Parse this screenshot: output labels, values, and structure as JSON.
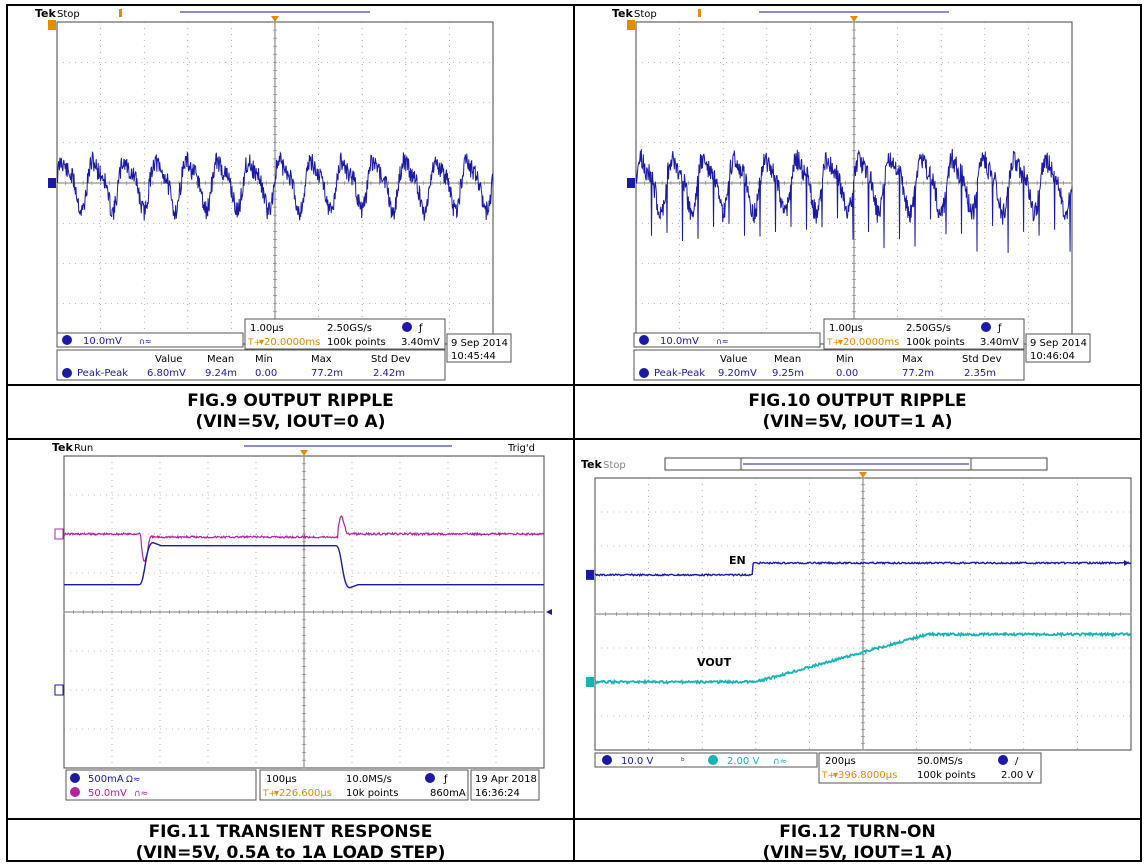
{
  "captions": [
    {
      "line1": "FIG.9 OUTPUT RIPPLE",
      "line2": "(VIN=5V, IOUT=0 A)"
    },
    {
      "line1": "FIG.10 OUTPUT RIPPLE",
      "line2": "(VIN=5V, IOUT=1 A)"
    },
    {
      "line1": "FIG.11 TRANSIENT RESPONSE",
      "line2": "(VIN=5V, 0.5A to 1A LOAD STEP)"
    },
    {
      "line1": "FIG.12 TURN-ON",
      "line2": "(VIN=5V, IOUT=1 A)"
    }
  ],
  "colors": {
    "ch1": "#1a1aa6",
    "ch2": "#16b3b3",
    "ch3": "#b3249e",
    "trigger": "#e68a00",
    "grid": "#7a7a7a"
  },
  "chart_data": [
    {
      "type": "line",
      "status": "Stop",
      "ch1_scale": "10.0mV",
      "ch1_suffix": "∩≈",
      "timebase": "1.00µs",
      "sample_rate": "2.50GS/s",
      "trigger_pos": "▾20.0000ms",
      "points": "100k points",
      "trigger_level": "3.40mV",
      "date": "9 Sep  2014",
      "time": "10:45:44",
      "measure_headers": [
        "Value",
        "Mean",
        "Min",
        "Max",
        "Std Dev"
      ],
      "measure_label": "Peak-Peak",
      "measure_values": [
        "6.80mV",
        "9.24m",
        "0.00",
        "77.2m",
        "2.42m"
      ],
      "series": [
        {
          "channel": "1",
          "level_div": 0.55,
          "ripple_periods": 14,
          "amplitude_div": 0.18,
          "spikes": false
        }
      ]
    },
    {
      "type": "line",
      "status": "Stop",
      "ch1_scale": "10.0mV",
      "ch1_suffix": "∩≈",
      "timebase": "1.00µs",
      "sample_rate": "2.50GS/s",
      "trigger_pos": "▾20.0000ms",
      "points": "100k points",
      "trigger_level": "3.40mV",
      "date": "9 Sep  2014",
      "time": "10:46:04",
      "measure_headers": [
        "Value",
        "Mean",
        "Min",
        "Max",
        "Std Dev"
      ],
      "measure_label": "Peak-Peak",
      "measure_values": [
        "9.20mV",
        "9.25m",
        "0.00",
        "77.2m",
        "2.35m"
      ],
      "series": [
        {
          "channel": "1",
          "level_div": 0.55,
          "ripple_periods": 14,
          "amplitude_div": 0.2,
          "spikes": true
        }
      ]
    },
    {
      "type": "line",
      "status": "Run",
      "trig_status": "Trig'd",
      "ch1_scale": "500mA",
      "ch1_suffix": "Ω≈",
      "ch3_scale": "50.0mV",
      "ch3_suffix": "∩≈",
      "timebase": "100µs",
      "sample_rate": "10.0MS/s",
      "trigger_pos": "▾226.600µs",
      "points": "10k points",
      "trigger_level": "860mA",
      "date": "19 Apr  2018",
      "time": "16:36:24",
      "series": [
        {
          "channel": "3",
          "name": "output voltage",
          "baseline_div": 2.0,
          "step_up_div": 1.6,
          "step_down_div": 5.7,
          "dip_div": 1.1,
          "peak_div": 0.8
        },
        {
          "channel": "1",
          "name": "load current",
          "low_div": 3.3,
          "high_div": 2.3,
          "rise_div": 1.65,
          "fall_div": 5.75
        }
      ]
    },
    {
      "type": "line",
      "status": "Stop",
      "ch1_scale": "10.0 V",
      "ch2_scale": "2.00 V",
      "ch2_suffix": "∩≈",
      "timebase": "200µs",
      "sample_rate": "50.0MS/s",
      "trigger_pos": "▾396.8000µs",
      "points": "100k points",
      "trigger_level": "2.00 V",
      "labels": {
        "en": "EN",
        "vout": "VOUT"
      },
      "series": [
        {
          "channel": "1",
          "name": "EN",
          "low_div": 2.85,
          "high_div": 2.5,
          "step_div": 2.95
        },
        {
          "channel": "2",
          "name": "VOUT",
          "start_div": 3.0,
          "end_div": 6.2,
          "low_div": 6.0,
          "high_div": 4.6
        }
      ]
    }
  ]
}
